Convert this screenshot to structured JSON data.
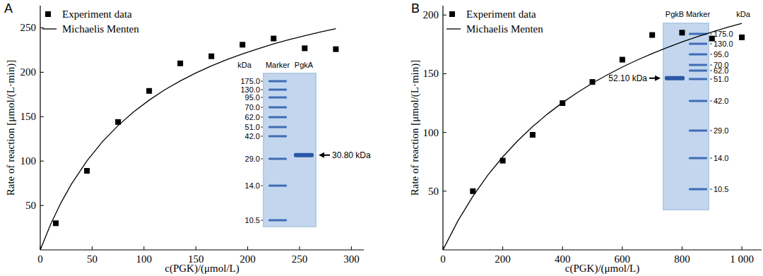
{
  "chart_data": [
    {
      "type": "scatter",
      "title": "A",
      "x_label": "c(PGK)/(μmol/L)",
      "y_label": "Rate of reaction [μmol/(L·min)]",
      "xlim": [
        0,
        312
      ],
      "ylim": [
        0,
        275
      ],
      "xticks": [
        0,
        50,
        100,
        150,
        200,
        250,
        300
      ],
      "yticks": [
        50,
        100,
        150,
        200,
        250
      ],
      "legend": "top-left",
      "series": [
        {
          "name": "Experiment data",
          "type": "scatter",
          "marker": "square",
          "color": "#000000",
          "x": [
            15,
            45,
            75,
            105,
            135,
            165,
            195,
            225,
            255,
            285
          ],
          "values": [
            30,
            89,
            144,
            179,
            210,
            218,
            231,
            238,
            227,
            226
          ]
        },
        {
          "name": "Michaelis Menten",
          "type": "line",
          "line_style": "solid",
          "color": "#000000",
          "x": [
            0,
            10,
            20,
            30,
            45,
            60,
            75,
            90,
            105,
            120,
            135,
            150,
            165,
            180,
            195,
            210,
            225,
            240,
            255,
            270,
            285
          ],
          "values": [
            0,
            28.8,
            53.2,
            74.0,
            100.3,
            121.9,
            140.0,
            155.4,
            168.6,
            180.2,
            190.3,
            199.2,
            207.2,
            214.3,
            220.7,
            226.5,
            231.9,
            236.7,
            241.2,
            245.3,
            249.0
          ]
        }
      ],
      "inset": {
        "unit": "kDa",
        "lanes": [
          "Marker",
          "PgkA"
        ],
        "ladder": [
          {
            "value": 175,
            "label": "175.0"
          },
          {
            "value": 130,
            "label": "130.0"
          },
          {
            "value": 95,
            "label": "95.0"
          },
          {
            "value": 70,
            "label": "70.0"
          },
          {
            "value": 62,
            "label": "62.0"
          },
          {
            "value": 51,
            "label": "51.0"
          },
          {
            "value": 42,
            "label": "42.0"
          },
          {
            "value": 29,
            "label": "29.0"
          },
          {
            "value": 14,
            "label": "14.0"
          },
          {
            "value": 10.5,
            "label": "10.5"
          }
        ],
        "band": {
          "value": 30.8,
          "label": "30.80 kDa"
        }
      }
    },
    {
      "type": "scatter",
      "title": "B",
      "x_label": "c(PGK)/(μmol/L)",
      "y_label": "Rate of reaction [μmol/(L·min)]",
      "xlim": [
        0,
        1066
      ],
      "ylim": [
        0,
        208
      ],
      "xticks": [
        0,
        200,
        400,
        600,
        800,
        {
          "value": 1000,
          "label": "1 000"
        }
      ],
      "yticks": [
        50,
        100,
        150,
        200
      ],
      "legend": "top-left",
      "series": [
        {
          "name": "Experiment data",
          "type": "scatter",
          "marker": "square",
          "color": "#000000",
          "x": [
            100,
            200,
            300,
            400,
            500,
            600,
            700,
            800,
            900,
            1000
          ],
          "values": [
            50,
            76,
            98,
            125,
            143,
            162,
            183,
            185,
            180,
            181
          ]
        },
        {
          "name": "Michaelis Menten",
          "type": "line",
          "line_style": "solid",
          "color": "#000000",
          "x": [
            0,
            50,
            100,
            150,
            200,
            250,
            300,
            350,
            400,
            450,
            500,
            550,
            600,
            650,
            700,
            750,
            800,
            850,
            900,
            950,
            1000
          ],
          "values": [
            0,
            24.7,
            45.6,
            63.6,
            79.2,
            92.9,
            105.0,
            115.8,
            125.4,
            134.1,
            142.0,
            149.1,
            155.7,
            161.7,
            167.2,
            172.3,
            177.1,
            181.5,
            185.5,
            189.4,
            192.9
          ]
        }
      ],
      "inset": {
        "unit": "kDa",
        "lanes": [
          "PgkB",
          "Marker"
        ],
        "ladder": [
          {
            "value": 175,
            "label": "175.0"
          },
          {
            "value": 130,
            "label": "130.0"
          },
          {
            "value": 95,
            "label": "95.0"
          },
          {
            "value": 70,
            "label": "70.0"
          },
          {
            "value": 62,
            "label": "62.0"
          },
          {
            "value": 51,
            "label": "51.0"
          },
          {
            "value": 42,
            "label": "42.0"
          },
          {
            "value": 29,
            "label": "29.0"
          },
          {
            "value": 14,
            "label": "14.0"
          },
          {
            "value": 10.5,
            "label": "10.5"
          }
        ],
        "band": {
          "value": 52.1,
          "label": "52.10 kDa"
        }
      }
    }
  ]
}
